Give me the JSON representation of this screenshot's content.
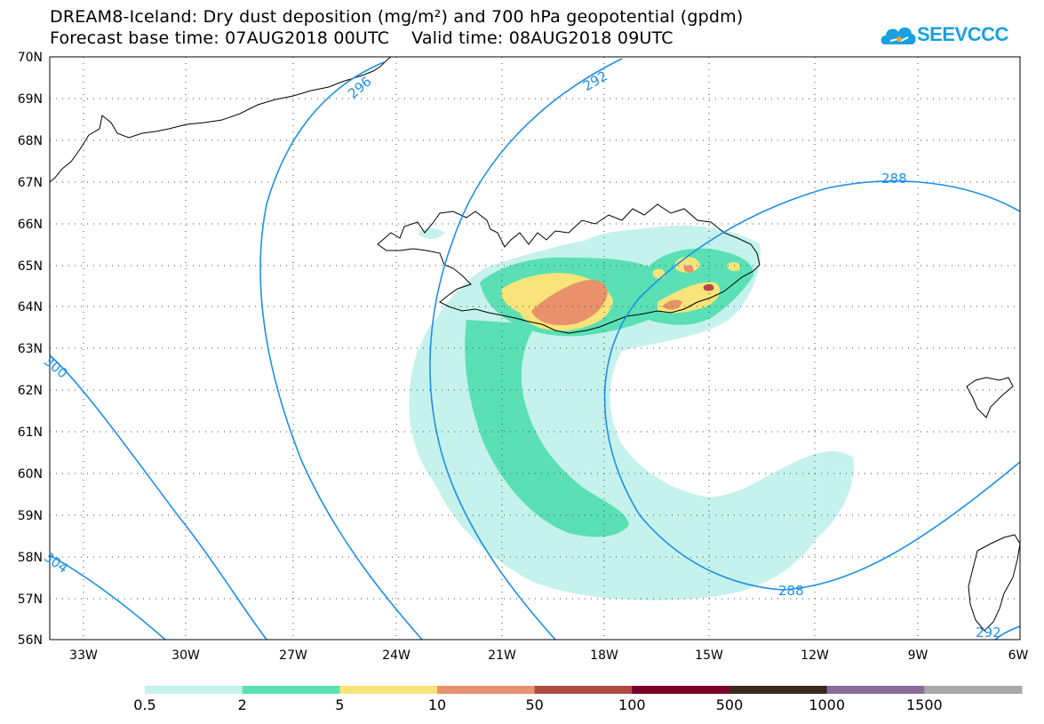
{
  "header": {
    "title_line_1": "DREAM8-Iceland: Dry dust deposition (mg/m²) and 700 hPa geopotential (gpdm)",
    "title_line_2": "Forecast base time: 07AUG2018 00UTC    Valid time: 08AUG2018 09UTC"
  },
  "logo": {
    "text": "SEEVCCC",
    "icon": "cloud-icon",
    "color": "#1aa0e0"
  },
  "map": {
    "lat_labels": [
      "70N",
      "69N",
      "68N",
      "67N",
      "66N",
      "65N",
      "64N",
      "63N",
      "62N",
      "61N",
      "60N",
      "59N",
      "58N",
      "57N",
      "56N"
    ],
    "lon_labels": [
      "33W",
      "30W",
      "27W",
      "24W",
      "21W",
      "18W",
      "15W",
      "12W",
      "9W",
      "6W"
    ],
    "contour_labels": [
      "296",
      "292",
      "288",
      "288",
      "300",
      "304",
      "292"
    ],
    "contour_color": "#1e90e6",
    "grid": true
  },
  "legend": {
    "colors": [
      "#c5f2ec",
      "#5ae0b4",
      "#f8e47a",
      "#e8916a",
      "#b04a45",
      "#7a0028",
      "#3a2a1e",
      "#8a6a9a",
      "#a8a8a8"
    ],
    "labels": [
      "0.5",
      "2",
      "5",
      "10",
      "50",
      "100",
      "500",
      "1000",
      "1500"
    ]
  }
}
